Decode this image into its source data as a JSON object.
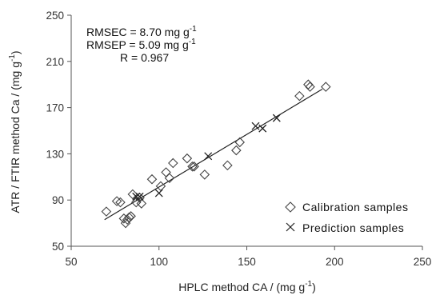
{
  "chart_data": {
    "type": "scatter",
    "xlabel": "HPLC method CA / (mg g",
    "xlabel_sup": "-1",
    "xlabel_end": ")",
    "ylabel": "ATR / FTIR method Ca / (mg g",
    "ylabel_sup": "-1",
    "ylabel_end": ")",
    "xlim": [
      50,
      250
    ],
    "ylim": [
      50,
      250
    ],
    "xticks": [
      50,
      100,
      150,
      200,
      250
    ],
    "yticks": [
      50,
      90,
      130,
      170,
      210,
      250
    ],
    "grid": false,
    "legend_position": "bottom-right",
    "annotations": {
      "rmsec": "RMSEC = 8.70 mg g",
      "rmsec_sup": "-1",
      "rmsep": "RMSEP = 5.09 mg g",
      "rmsep_sup": "-1",
      "r": "R = 0.967"
    },
    "series": [
      {
        "name": "Calibration samples",
        "marker": "diamond",
        "points": [
          [
            70,
            80
          ],
          [
            76,
            89
          ],
          [
            78,
            88
          ],
          [
            80,
            74
          ],
          [
            81,
            70
          ],
          [
            82,
            73
          ],
          [
            83,
            75
          ],
          [
            84,
            76
          ],
          [
            85,
            95
          ],
          [
            87,
            88
          ],
          [
            89,
            92
          ],
          [
            90,
            87
          ],
          [
            96,
            108
          ],
          [
            101,
            102
          ],
          [
            104,
            114
          ],
          [
            106,
            109
          ],
          [
            108,
            122
          ],
          [
            116,
            126
          ],
          [
            119,
            119
          ],
          [
            120,
            119
          ],
          [
            126,
            112
          ],
          [
            139,
            120
          ],
          [
            144,
            133
          ],
          [
            146,
            140
          ],
          [
            180,
            180
          ],
          [
            185,
            190
          ],
          [
            186,
            188
          ],
          [
            195,
            188
          ]
        ]
      },
      {
        "name": "Prediction samples",
        "marker": "cross",
        "points": [
          [
            87,
            93
          ],
          [
            89,
            93
          ],
          [
            100,
            96
          ],
          [
            128,
            128
          ],
          [
            155,
            154
          ],
          [
            159,
            152
          ],
          [
            167,
            161
          ]
        ]
      }
    ],
    "fit_line": {
      "x": [
        69,
        193
      ],
      "y": [
        73,
        186
      ]
    }
  },
  "colors": {
    "axis": "#555555",
    "marker": "#444444",
    "line": "#222222"
  }
}
